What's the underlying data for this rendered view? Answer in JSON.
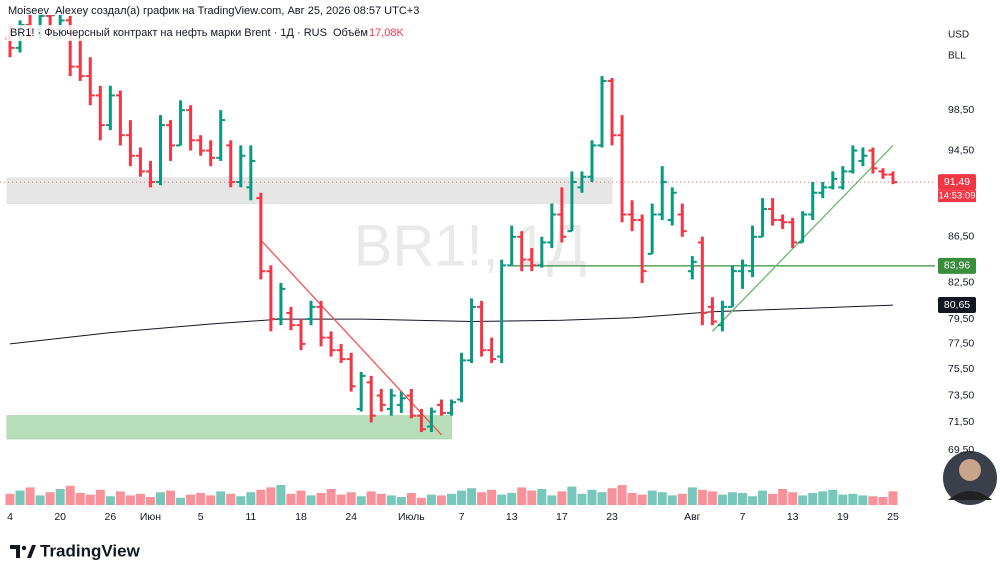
{
  "chart_data": {
    "type": "ohlc",
    "title": "Moiseev_Alexey создал(а) график на TradingView.com, Авг 25, 2026 08:57 UTC+3",
    "symbol": "BR1! · Фьючерсный контракт на нефть марки Brent · 1Д · RUS",
    "watermark": "BR1!, 1Д",
    "currency": "USD",
    "unit": "BLL",
    "brand": "TradingView",
    "log": true,
    "up_color": "#089981",
    "down_color": "#f23645",
    "categories": [
      "4",
      null,
      null,
      null,
      null,
      "20",
      null,
      null,
      null,
      null,
      "26",
      null,
      null,
      null,
      "Июн",
      null,
      null,
      null,
      null,
      "5",
      null,
      null,
      null,
      null,
      "11",
      null,
      null,
      null,
      null,
      "18",
      null,
      null,
      null,
      null,
      "24",
      null,
      null,
      null,
      null,
      null,
      "Июль",
      null,
      null,
      null,
      null,
      "7",
      null,
      null,
      null,
      null,
      "13",
      null,
      null,
      null,
      null,
      "17",
      null,
      null,
      null,
      null,
      "23",
      null,
      null,
      null,
      null,
      null,
      null,
      null,
      "Авг",
      null,
      null,
      null,
      null,
      "7",
      null,
      null,
      null,
      null,
      "13",
      null,
      null,
      null,
      null,
      "19",
      null,
      null,
      null,
      null,
      "25"
    ],
    "ohlc": [
      [
        106,
        107.5,
        104,
        105
      ],
      [
        105,
        108,
        104.5,
        107.5
      ],
      [
        107.5,
        109,
        106,
        107
      ],
      [
        107,
        109,
        106,
        108.5
      ],
      [
        108.5,
        110,
        106.5,
        107
      ],
      [
        107,
        109,
        106,
        108
      ],
      [
        108,
        108.5,
        102,
        103
      ],
      [
        103,
        106,
        101.5,
        102
      ],
      [
        102,
        104,
        99,
        100
      ],
      [
        100,
        101,
        95.5,
        97
      ],
      [
        97,
        101,
        96.5,
        100
      ],
      [
        100,
        100.5,
        95,
        96
      ],
      [
        96,
        97.5,
        93,
        94
      ],
      [
        94,
        94.8,
        92,
        92.5
      ],
      [
        92.5,
        93.5,
        91,
        91.5
      ],
      [
        91.5,
        98,
        91.2,
        97
      ],
      [
        97,
        97.5,
        93.5,
        95
      ],
      [
        95,
        99.5,
        95,
        98.5
      ],
      [
        98.5,
        99,
        94.5,
        95.5
      ],
      [
        95.5,
        96,
        94,
        94.5
      ],
      [
        94.5,
        95.5,
        93,
        93.8
      ],
      [
        93.8,
        98.5,
        93.5,
        97.5
      ],
      [
        95,
        95.5,
        91,
        91.5
      ],
      [
        91.5,
        95,
        91,
        94
      ],
      [
        91,
        95,
        89.8,
        93.5
      ],
      [
        90,
        90.5,
        82.8,
        83.5
      ],
      [
        83.5,
        84,
        78.5,
        79.5
      ],
      [
        79.5,
        82.5,
        79,
        82
      ],
      [
        80,
        80.5,
        78.6,
        79
      ],
      [
        79,
        79.5,
        77,
        77.5
      ],
      [
        79.5,
        81,
        79,
        80.5
      ],
      [
        80.5,
        81,
        77.3,
        78
      ],
      [
        78,
        78.5,
        76.5,
        77
      ],
      [
        77,
        77.5,
        76,
        76.3
      ],
      [
        76.3,
        76.8,
        73.8,
        74.2
      ],
      [
        72.5,
        75.3,
        72.3,
        75
      ],
      [
        74.5,
        75,
        71.5,
        72
      ],
      [
        73.5,
        74,
        72.3,
        72.8
      ],
      [
        72.5,
        74,
        72,
        73.5
      ],
      [
        72.8,
        73.8,
        72.2,
        73.3
      ],
      [
        73.5,
        74,
        71.8,
        72
      ],
      [
        72,
        72.5,
        70.8,
        71
      ],
      [
        71.2,
        72.6,
        70.8,
        72.3
      ],
      [
        72.8,
        73.2,
        72,
        72.2
      ],
      [
        72.2,
        73.2,
        72,
        73
      ],
      [
        73.2,
        76.8,
        73,
        76.2
      ],
      [
        76.2,
        81.2,
        76,
        80.5
      ],
      [
        80.5,
        81,
        76.5,
        77
      ],
      [
        77,
        78,
        76,
        76.3
      ],
      [
        76.5,
        84.5,
        76,
        84
      ],
      [
        84,
        87.5,
        84,
        86.5
      ],
      [
        86.5,
        87,
        83.5,
        84.5
      ],
      [
        84.5,
        85.5,
        83.5,
        84
      ],
      [
        84,
        86.5,
        83.8,
        86
      ],
      [
        86,
        89.5,
        85.5,
        88.5
      ],
      [
        88.5,
        91,
        86,
        86.5
      ],
      [
        87,
        92.5,
        87,
        91.5
      ],
      [
        91,
        92.5,
        90.5,
        92
      ],
      [
        92,
        95.5,
        91.5,
        95
      ],
      [
        95,
        102,
        94.8,
        101.5
      ],
      [
        101.5,
        101.8,
        95,
        96
      ],
      [
        96,
        98,
        87.8,
        88.5
      ],
      [
        88.5,
        89.8,
        87,
        88
      ],
      [
        88,
        88.5,
        82.5,
        83.5
      ],
      [
        85,
        89.5,
        85,
        88.5
      ],
      [
        88.5,
        93,
        88,
        91.5
      ],
      [
        88,
        91,
        87.5,
        90.5
      ],
      [
        88.5,
        89.5,
        86.5,
        87
      ],
      [
        83.5,
        84.8,
        82.8,
        84.3
      ],
      [
        86,
        86.5,
        79,
        80
      ],
      [
        80.5,
        81.3,
        79,
        79.3
      ],
      [
        79,
        81,
        78.5,
        80.5
      ],
      [
        80.5,
        84,
        80.5,
        83.5
      ],
      [
        83.5,
        84.5,
        82,
        84
      ],
      [
        83.5,
        87.5,
        83,
        86.5
      ],
      [
        86.5,
        90,
        86.5,
        89
      ],
      [
        89,
        90,
        87.5,
        88
      ],
      [
        88,
        88.5,
        87.2,
        87.8
      ],
      [
        87.8,
        88.2,
        85.5,
        86
      ],
      [
        86,
        88.8,
        86,
        88.5
      ],
      [
        88.5,
        91.5,
        88,
        90.5
      ],
      [
        90.5,
        91.5,
        90,
        91
      ],
      [
        91,
        92.5,
        90.8,
        91.8
      ],
      [
        91,
        93,
        90.8,
        92.5
      ],
      [
        92.5,
        95,
        92.3,
        94.5
      ],
      [
        93.5,
        94.8,
        93,
        94
      ],
      [
        94.5,
        94.8,
        92.3,
        92.8
      ],
      [
        92.5,
        92.8,
        91.8,
        92.2
      ],
      [
        92.2,
        92.5,
        91.3,
        91.49
      ]
    ],
    "ylim": [
      67.4,
      108.6
    ],
    "yticks": [
      {
        "value": 98.5,
        "label": "98,50"
      },
      {
        "value": 94.5,
        "label": "94,50"
      },
      {
        "value": 86.5,
        "label": "86,50"
      },
      {
        "value": 82.5,
        "label": "82,50"
      },
      {
        "value": 79.5,
        "label": "79,50"
      },
      {
        "value": 77.5,
        "label": "77,50"
      },
      {
        "value": 75.5,
        "label": "75,50"
      },
      {
        "value": 73.5,
        "label": "73,50"
      },
      {
        "value": 71.5,
        "label": "71,50"
      },
      {
        "value": 69.5,
        "label": "69,50"
      }
    ],
    "last_price": {
      "value": 91.49,
      "label": "91,49"
    },
    "countdown": "14:53:09",
    "level": {
      "value": 83.96,
      "label": "83,96",
      "from": 50,
      "color": "#388e3c"
    },
    "ma": {
      "x": [
        0,
        10,
        20,
        27,
        35,
        46,
        55,
        62,
        70,
        80,
        88
      ],
      "values": [
        77.5,
        78.4,
        79.1,
        79.5,
        79.5,
        79.3,
        79.4,
        79.6,
        80.1,
        80.4,
        80.65
      ],
      "last_label": "80,65",
      "color": "#131722"
    },
    "zones": [
      {
        "x": [
          0,
          60
        ],
        "y": [
          89.5,
          91.9
        ],
        "color": "#e0e0e0"
      },
      {
        "x": [
          0,
          44
        ],
        "y": [
          70.3,
          72.0
        ],
        "color": "#a5d6a7"
      }
    ],
    "trendlines": [
      {
        "x": [
          25,
          43
        ],
        "y": [
          86.2,
          70.6
        ],
        "color": "#ef5350"
      },
      {
        "x": [
          70,
          88
        ],
        "y": [
          78.5,
          95.0
        ],
        "color": "#66bb6a"
      }
    ],
    "volume": {
      "name": "Объём",
      "last_label": "17,08K",
      "ylim": [
        0,
        30
      ],
      "values": [
        14,
        18,
        22,
        12,
        16,
        20,
        24,
        15,
        13,
        19,
        11,
        17,
        12,
        14,
        10,
        16,
        18,
        9,
        13,
        15,
        12,
        17,
        14,
        11,
        16,
        19,
        22,
        25,
        14,
        18,
        12,
        15,
        20,
        13,
        16,
        11,
        17,
        14,
        12,
        10,
        15,
        9,
        13,
        12,
        14,
        18,
        21,
        16,
        19,
        13,
        15,
        22,
        18,
        20,
        12,
        17,
        23,
        14,
        19,
        16,
        21,
        25,
        15,
        13,
        18,
        16,
        12,
        14,
        22,
        19,
        17,
        13,
        16,
        15,
        11,
        18,
        14,
        20,
        16,
        12,
        15,
        17,
        19,
        13,
        14,
        12,
        11,
        10,
        17.08
      ]
    }
  }
}
